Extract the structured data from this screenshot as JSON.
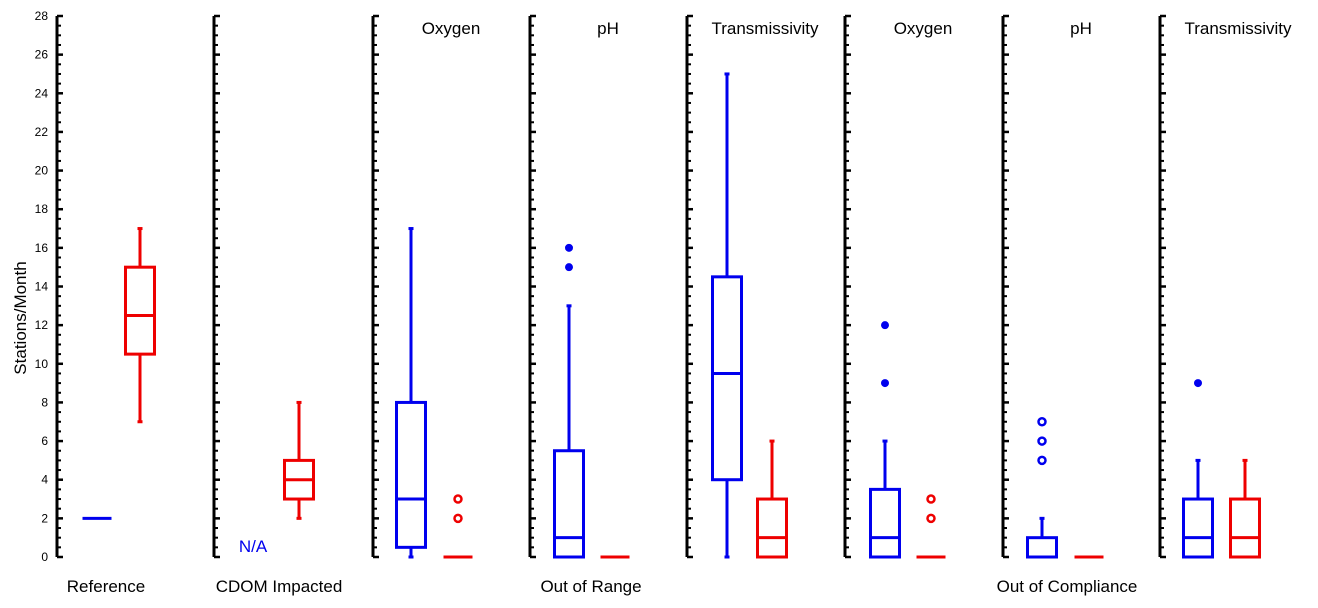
{
  "chart_data": {
    "type": "box",
    "ylabel": "Stations/Month",
    "ylim": [
      0,
      28
    ],
    "y_ticks": [
      0,
      2,
      4,
      6,
      8,
      10,
      12,
      14,
      16,
      18,
      20,
      22,
      24,
      26,
      28
    ],
    "colors": {
      "blue_series": "#0000ee",
      "red_series": "#ee0000",
      "axis": "#000000"
    },
    "group_labels": [
      "Reference",
      "CDOM Impacted",
      "Out of Range",
      "Out of Compliance"
    ],
    "panels": [
      {
        "title": "",
        "boxes": [
          {
            "color": "blue",
            "whisker_low": 2,
            "q1": 2,
            "median": 2,
            "q3": 2,
            "whisker_high": 2,
            "outliers": []
          },
          {
            "color": "red",
            "whisker_low": 7,
            "q1": 10.5,
            "median": 12.5,
            "q3": 15,
            "whisker_high": 17,
            "outliers": []
          }
        ]
      },
      {
        "title": "",
        "annotation": "N/A",
        "boxes": [
          {
            "color": "red",
            "whisker_low": 2,
            "q1": 3,
            "median": 4,
            "q3": 5,
            "whisker_high": 8,
            "outliers": []
          }
        ]
      },
      {
        "title": "Oxygen",
        "boxes": [
          {
            "color": "blue",
            "whisker_low": 0,
            "q1": 0.5,
            "median": 3,
            "q3": 8,
            "whisker_high": 17,
            "outliers": []
          },
          {
            "color": "red",
            "whisker_low": 0,
            "q1": 0,
            "median": 0,
            "q3": 0,
            "whisker_high": 0,
            "outliers": [
              2,
              3
            ]
          }
        ]
      },
      {
        "title": "pH",
        "boxes": [
          {
            "color": "blue",
            "whisker_low": 0,
            "q1": 0,
            "median": 1,
            "q3": 5.5,
            "whisker_high": 13,
            "outliers": [
              15,
              16
            ]
          },
          {
            "color": "red",
            "whisker_low": 0,
            "q1": 0,
            "median": 0,
            "q3": 0,
            "whisker_high": 0,
            "outliers": []
          }
        ]
      },
      {
        "title": "Transmissivity",
        "boxes": [
          {
            "color": "blue",
            "whisker_low": 0,
            "q1": 4,
            "median": 9.5,
            "q3": 14.5,
            "whisker_high": 25,
            "outliers": []
          },
          {
            "color": "red",
            "whisker_low": 0,
            "q1": 0,
            "median": 1,
            "q3": 3,
            "whisker_high": 6,
            "outliers": []
          }
        ]
      },
      {
        "title": "Oxygen",
        "boxes": [
          {
            "color": "blue",
            "whisker_low": 0,
            "q1": 0,
            "median": 1,
            "q3": 3.5,
            "whisker_high": 6,
            "outliers": [
              9,
              12
            ]
          },
          {
            "color": "red",
            "whisker_low": 0,
            "q1": 0,
            "median": 0,
            "q3": 0,
            "whisker_high": 0,
            "outliers": [
              2,
              3
            ]
          }
        ]
      },
      {
        "title": "pH",
        "boxes": [
          {
            "color": "blue",
            "whisker_low": 0,
            "q1": 0,
            "median": 0,
            "q3": 1,
            "whisker_high": 2,
            "outliers": [
              5,
              6,
              7
            ]
          },
          {
            "color": "red",
            "whisker_low": 0,
            "q1": 0,
            "median": 0,
            "q3": 0,
            "whisker_high": 0,
            "outliers": []
          }
        ]
      },
      {
        "title": "Transmissivity",
        "boxes": [
          {
            "color": "blue",
            "whisker_low": 0,
            "q1": 0,
            "median": 1,
            "q3": 3,
            "whisker_high": 5,
            "outliers": [
              9
            ]
          },
          {
            "color": "red",
            "whisker_low": 0,
            "q1": 0,
            "median": 1,
            "q3": 3,
            "whisker_high": 5,
            "outliers": []
          }
        ]
      }
    ]
  }
}
